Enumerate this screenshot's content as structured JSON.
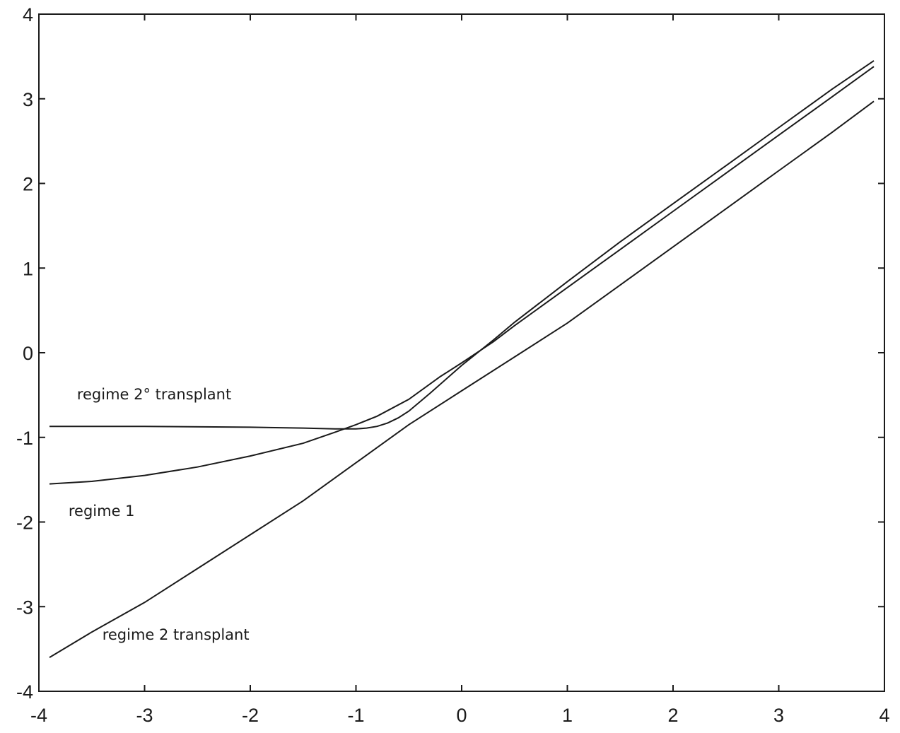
{
  "chart_data": {
    "type": "line",
    "title": "",
    "xlabel": "",
    "ylabel": "",
    "xlim": [
      -4,
      4
    ],
    "ylim": [
      -4,
      4
    ],
    "xticks": [
      -4,
      -3,
      -2,
      -1,
      0,
      1,
      2,
      3,
      4
    ],
    "yticks": [
      -4,
      -3,
      -2,
      -1,
      0,
      1,
      2,
      3,
      4
    ],
    "xtick_labels": [
      "-4",
      "-3",
      "-2",
      "-1",
      "0",
      "1",
      "2",
      "3",
      "4"
    ],
    "ytick_labels": [
      "-4",
      "-3",
      "-2",
      "-1",
      "0",
      "1",
      "2",
      "3",
      "4"
    ],
    "grid": false,
    "line_color": "#1a1a1a",
    "series": [
      {
        "x": [
          -3.9,
          -3.5,
          -3.0,
          -2.5,
          -2.0,
          -1.5,
          -1.0,
          -0.5,
          0.0,
          0.5,
          1.0,
          1.5,
          2.0,
          2.5,
          3.0,
          3.5,
          3.9
        ],
        "y": [
          -3.6,
          -3.3,
          -2.95,
          -2.55,
          -2.15,
          -1.75,
          -1.3,
          -0.85,
          -0.45,
          -0.05,
          0.35,
          0.8,
          1.25,
          1.7,
          2.15,
          2.6,
          2.97
        ]
      },
      {
        "x": [
          -3.9,
          -3.5,
          -3.0,
          -2.5,
          -2.0,
          -1.5,
          -1.2,
          -1.0,
          -0.8,
          -0.5,
          -0.2,
          0.0,
          0.3,
          0.5,
          1.0,
          1.5,
          2.0,
          2.5,
          3.0,
          3.5,
          3.9
        ],
        "y": [
          -1.55,
          -1.52,
          -1.45,
          -1.35,
          -1.22,
          -1.07,
          -0.94,
          -0.85,
          -0.75,
          -0.55,
          -0.28,
          -0.12,
          0.13,
          0.32,
          0.77,
          1.22,
          1.67,
          2.12,
          2.57,
          3.02,
          3.38
        ]
      },
      {
        "x": [
          -3.9,
          -3.0,
          -2.0,
          -1.5,
          -1.2,
          -1.0,
          -0.9,
          -0.8,
          -0.7,
          -0.6,
          -0.5,
          -0.3,
          0.0,
          0.3,
          0.5,
          1.0,
          1.5,
          2.0,
          2.5,
          3.0,
          3.5,
          3.9
        ],
        "y": [
          -0.87,
          -0.87,
          -0.88,
          -0.89,
          -0.9,
          -0.9,
          -0.89,
          -0.87,
          -0.83,
          -0.77,
          -0.69,
          -0.48,
          -0.15,
          0.15,
          0.36,
          0.84,
          1.31,
          1.76,
          2.21,
          2.66,
          3.11,
          3.45
        ]
      }
    ],
    "annotations": [
      {
        "text": "regime 2° transplant",
        "x": -3.64,
        "y": -0.55
      },
      {
        "text": "regime 1",
        "x": -3.72,
        "y": -1.93
      },
      {
        "text": "regime 2 transplant",
        "x": -3.4,
        "y": -3.39
      }
    ]
  }
}
